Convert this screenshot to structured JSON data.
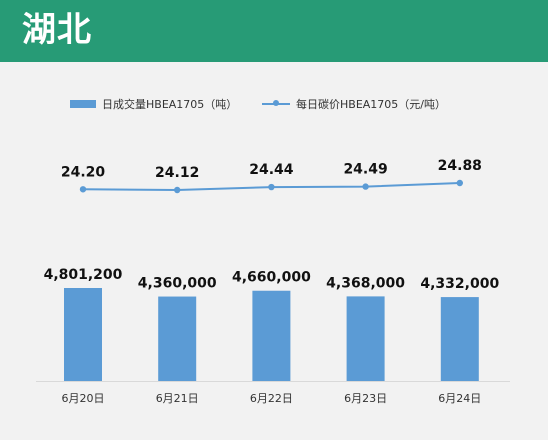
{
  "header": {
    "title": "湖北"
  },
  "legend": {
    "bar_label": "日成交量HBEA1705（吨）",
    "line_label": "每日碳价HBEA1705（元/吨）"
  },
  "colors": {
    "header": "#279b76",
    "series": "#5b9bd5",
    "background": "#f2f2f2"
  },
  "chart_data": {
    "type": "bar",
    "categories": [
      "6月20日",
      "6月21日",
      "6月22日",
      "6月23日",
      "6月24日"
    ],
    "series": [
      {
        "name": "日成交量HBEA1705（吨）",
        "type": "bar",
        "values": [
          4801200,
          4360000,
          4660000,
          4368000,
          4332000
        ],
        "labels": [
          "4,801,200",
          "4,360,000",
          "4,660,000",
          "4,368,000",
          "4,332,000"
        ]
      },
      {
        "name": "每日碳价HBEA1705（元/吨）",
        "type": "line",
        "values": [
          24.2,
          24.12,
          24.44,
          24.49,
          24.88
        ],
        "labels": [
          "24.20",
          "24.12",
          "24.44",
          "24.49",
          "24.88"
        ]
      }
    ],
    "title": "",
    "xlabel": "",
    "ylabel": "",
    "grid": false,
    "legend_position": "top-left"
  }
}
